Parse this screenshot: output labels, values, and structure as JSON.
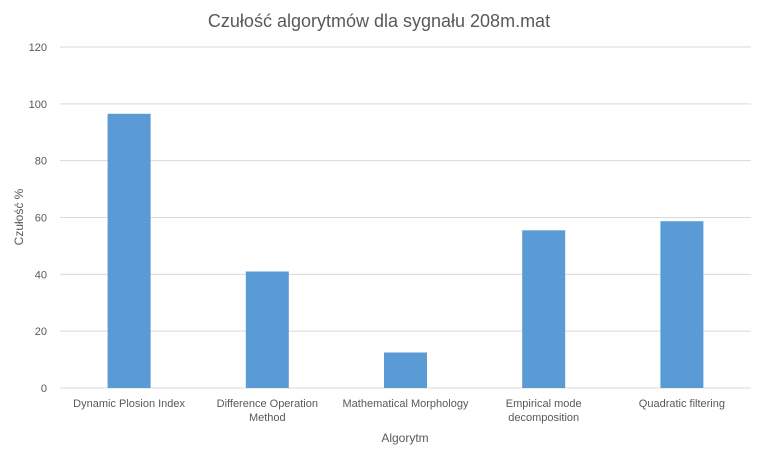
{
  "chart_data": {
    "type": "bar",
    "title": "Czułość algorytmów dla sygnału 208m.mat",
    "xlabel": "Algorytm",
    "ylabel": "Czułość %",
    "ylim": [
      0,
      120
    ],
    "yticks": [
      0,
      20,
      40,
      60,
      80,
      100,
      120
    ],
    "grid": true,
    "legend": "none",
    "categories": [
      [
        "Dynamic Plosion Index"
      ],
      [
        "Difference Operation",
        "Method"
      ],
      [
        "Mathematical Morphology"
      ],
      [
        "Empirical mode",
        "decomposition"
      ],
      [
        "Quadratic filtering"
      ]
    ],
    "values": [
      96.5,
      41.0,
      12.5,
      55.5,
      58.7
    ],
    "colors": {
      "bar": "#5b9bd5",
      "grid": "#d9d9d9",
      "text": "#595959"
    }
  }
}
